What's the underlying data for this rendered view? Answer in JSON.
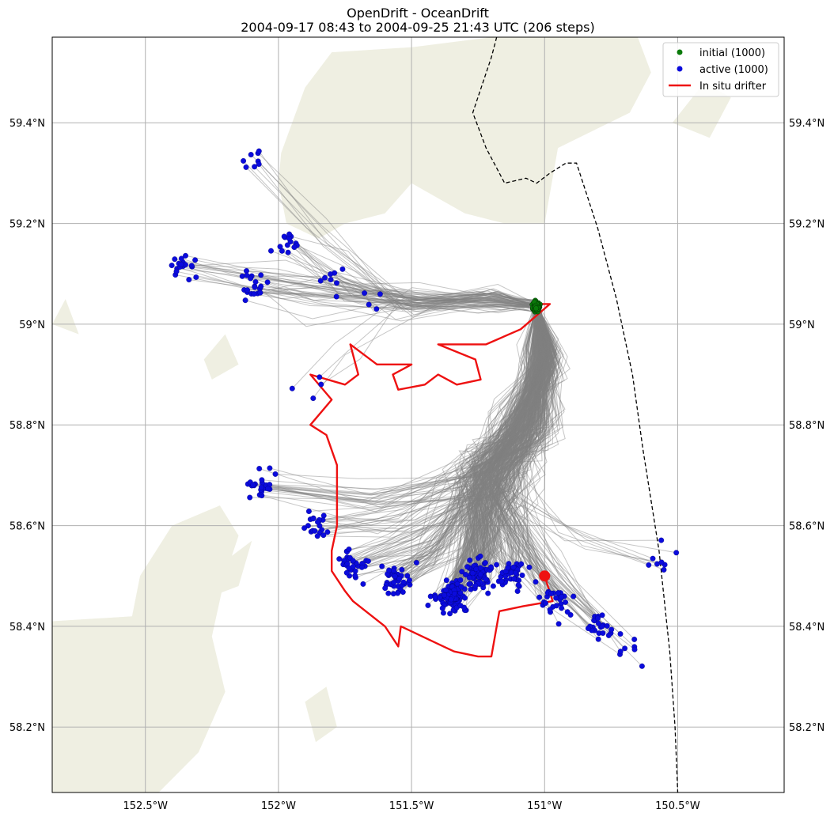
{
  "title": {
    "line1": "OpenDrift - OceanDrift",
    "line2": "2004-09-17 08:43 to 2004-09-25 21:43 UTC (206 steps)"
  },
  "legend": {
    "initial": "initial (1000)",
    "active": "active (1000)",
    "drifter": "In situ drifter"
  },
  "colors": {
    "land": "#efefe2",
    "trajectory": "#808080",
    "initial": "#0a7a0a",
    "active": "#0b0bdc",
    "drifter": "#ee1111",
    "grid": "#b0b0b0",
    "boundary": "#000000"
  },
  "chart_data": {
    "type": "scatter",
    "xlim": [
      -152.85,
      -150.1
    ],
    "ylim": [
      58.07,
      59.57
    ],
    "grid": true,
    "legend_position": "top-right",
    "x_ticks": [
      {
        "value": -152.5,
        "label": "152.5°W"
      },
      {
        "value": -152.0,
        "label": "152°W"
      },
      {
        "value": -151.5,
        "label": "151.5°W"
      },
      {
        "value": -151.0,
        "label": "151°W"
      },
      {
        "value": -150.5,
        "label": "150.5°W"
      }
    ],
    "y_ticks": [
      {
        "value": 58.2,
        "label": "58.2°N"
      },
      {
        "value": 58.4,
        "label": "58.4°N"
      },
      {
        "value": 58.6,
        "label": "58.6°N"
      },
      {
        "value": 58.8,
        "label": "58.8°N"
      },
      {
        "value": 59.0,
        "label": "59°N"
      },
      {
        "value": 59.2,
        "label": "59.2°N"
      },
      {
        "value": 59.4,
        "label": "59.4°N"
      }
    ],
    "land": [
      [
        [
          -152.85,
          58.41
        ],
        [
          -152.55,
          58.42
        ],
        [
          -152.52,
          58.5
        ],
        [
          -152.4,
          58.6
        ],
        [
          -152.22,
          58.64
        ],
        [
          -152.15,
          58.58
        ],
        [
          -152.2,
          58.5
        ],
        [
          -152.25,
          58.38
        ],
        [
          -152.2,
          58.27
        ],
        [
          -152.3,
          58.15
        ],
        [
          -152.45,
          58.07
        ],
        [
          -152.85,
          58.07
        ]
      ],
      [
        [
          -152.32,
          58.52
        ],
        [
          -152.2,
          58.53
        ],
        [
          -152.1,
          58.57
        ],
        [
          -152.15,
          58.48
        ],
        [
          -152.25,
          58.46
        ]
      ],
      [
        [
          -151.99,
          59.34
        ],
        [
          -151.9,
          59.47
        ],
        [
          -151.8,
          59.54
        ],
        [
          -151.5,
          59.55
        ],
        [
          -151.2,
          59.57
        ],
        [
          -150.65,
          59.57
        ],
        [
          -150.6,
          59.5
        ],
        [
          -150.68,
          59.42
        ],
        [
          -150.95,
          59.35
        ],
        [
          -151.0,
          59.2
        ],
        [
          -151.15,
          59.2
        ],
        [
          -151.3,
          59.22
        ],
        [
          -151.5,
          59.28
        ],
        [
          -151.6,
          59.22
        ],
        [
          -151.75,
          59.2
        ],
        [
          -151.85,
          59.17
        ],
        [
          -151.97,
          59.2
        ],
        [
          -152.0,
          59.28
        ]
      ],
      [
        [
          -150.52,
          59.4
        ],
        [
          -150.4,
          59.48
        ],
        [
          -150.3,
          59.45
        ],
        [
          -150.38,
          59.37
        ]
      ],
      [
        [
          -152.28,
          58.93
        ],
        [
          -152.2,
          58.98
        ],
        [
          -152.15,
          58.92
        ],
        [
          -152.25,
          58.89
        ]
      ],
      [
        [
          -151.9,
          58.25
        ],
        [
          -151.82,
          58.28
        ],
        [
          -151.78,
          58.2
        ],
        [
          -151.86,
          58.17
        ]
      ],
      [
        [
          -152.85,
          59.0
        ],
        [
          -152.8,
          59.05
        ],
        [
          -152.75,
          58.98
        ]
      ]
    ],
    "boundary": [
      [
        -151.18,
        59.57
      ],
      [
        -151.2,
        59.53
      ],
      [
        -151.27,
        59.42
      ],
      [
        -151.22,
        59.35
      ],
      [
        -151.15,
        59.28
      ],
      [
        -151.07,
        59.29
      ],
      [
        -151.03,
        59.28
      ],
      [
        -150.98,
        59.3
      ],
      [
        -150.92,
        59.32
      ],
      [
        -150.88,
        59.32
      ],
      [
        -150.8,
        59.19
      ],
      [
        -150.73,
        59.05
      ],
      [
        -150.67,
        58.9
      ],
      [
        -150.63,
        58.75
      ],
      [
        -150.57,
        58.55
      ],
      [
        -150.53,
        58.35
      ],
      [
        -150.51,
        58.2
      ],
      [
        -150.5,
        58.07
      ]
    ],
    "drifter": [
      [
        -151.03,
        59.04
      ],
      [
        -150.98,
        59.04
      ],
      [
        -151.09,
        58.99
      ],
      [
        -151.22,
        58.96
      ],
      [
        -151.4,
        58.96
      ],
      [
        -151.26,
        58.93
      ],
      [
        -151.24,
        58.89
      ],
      [
        -151.33,
        58.88
      ],
      [
        -151.4,
        58.9
      ],
      [
        -151.45,
        58.88
      ],
      [
        -151.55,
        58.87
      ],
      [
        -151.57,
        58.9
      ],
      [
        -151.5,
        58.92
      ],
      [
        -151.63,
        58.92
      ],
      [
        -151.73,
        58.96
      ],
      [
        -151.7,
        58.9
      ],
      [
        -151.75,
        58.88
      ],
      [
        -151.88,
        58.9
      ],
      [
        -151.8,
        58.85
      ],
      [
        -151.88,
        58.8
      ],
      [
        -151.82,
        58.78
      ],
      [
        -151.78,
        58.72
      ],
      [
        -151.78,
        58.6
      ],
      [
        -151.8,
        58.55
      ],
      [
        -151.8,
        58.51
      ],
      [
        -151.75,
        58.47
      ],
      [
        -151.72,
        58.45
      ],
      [
        -151.6,
        58.4
      ],
      [
        -151.55,
        58.36
      ],
      [
        -151.54,
        58.4
      ],
      [
        -151.38,
        58.36
      ],
      [
        -151.34,
        58.35
      ],
      [
        -151.25,
        58.34
      ],
      [
        -151.2,
        58.34
      ],
      [
        -151.17,
        58.43
      ],
      [
        -151.08,
        58.44
      ],
      [
        -150.97,
        58.45
      ],
      [
        -151.0,
        58.5
      ]
    ],
    "drifter_end": [
      -151.0,
      58.5
    ],
    "initial_center": [
      -151.03,
      59.035
    ],
    "trajectory_anchors": [
      {
        "lon": -152.1,
        "lat": 59.32,
        "weight": 8
      },
      {
        "lon": -151.96,
        "lat": 59.16,
        "weight": 14
      },
      {
        "lon": -152.35,
        "lat": 59.11,
        "weight": 18
      },
      {
        "lon": -152.1,
        "lat": 59.07,
        "weight": 20
      },
      {
        "lon": -151.8,
        "lat": 59.08,
        "weight": 8
      },
      {
        "lon": -151.6,
        "lat": 59.05,
        "weight": 4
      },
      {
        "lon": -152.05,
        "lat": 58.68,
        "weight": 24
      },
      {
        "lon": -151.85,
        "lat": 58.6,
        "weight": 20
      },
      {
        "lon": -151.72,
        "lat": 58.52,
        "weight": 30
      },
      {
        "lon": -151.55,
        "lat": 58.49,
        "weight": 40
      },
      {
        "lon": -151.35,
        "lat": 58.46,
        "weight": 110
      },
      {
        "lon": -151.25,
        "lat": 58.5,
        "weight": 70
      },
      {
        "lon": -151.12,
        "lat": 58.5,
        "weight": 40
      },
      {
        "lon": -150.95,
        "lat": 58.45,
        "weight": 28
      },
      {
        "lon": -150.8,
        "lat": 58.4,
        "weight": 22
      },
      {
        "lon": -150.68,
        "lat": 58.36,
        "weight": 8
      },
      {
        "lon": -150.57,
        "lat": 58.53,
        "weight": 8
      },
      {
        "lon": -151.88,
        "lat": 58.88,
        "weight": 4
      }
    ]
  }
}
